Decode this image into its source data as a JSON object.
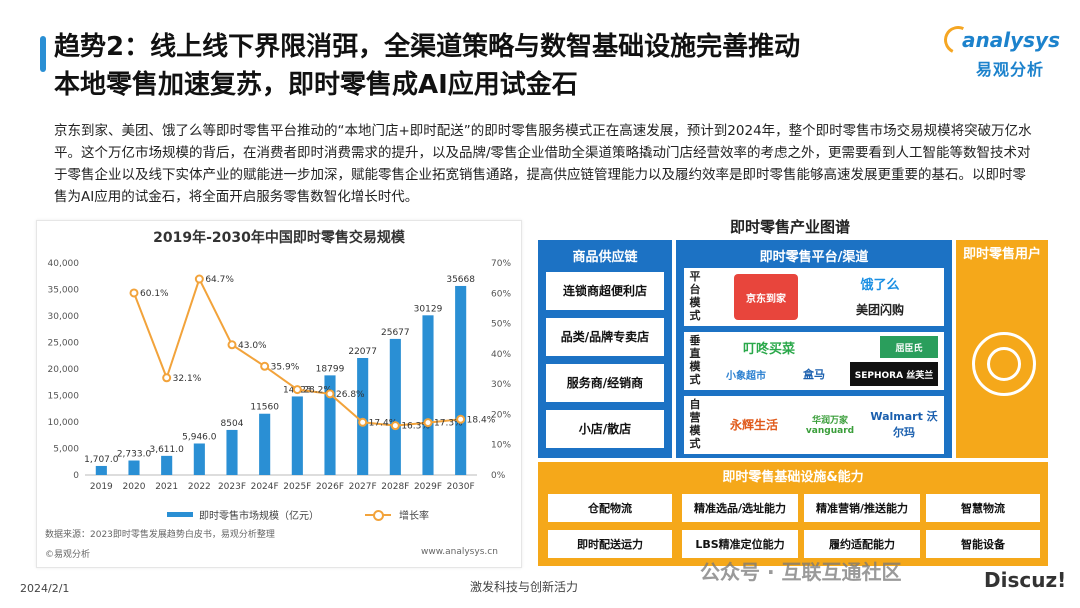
{
  "header": {
    "title_line1": "趋势2：线上线下界限消弭，全渠道策略与数智基础设施完善推动",
    "title_line2": "本地零售加速复苏，即时零售成AI应用试金石"
  },
  "logo": {
    "name": "analysys",
    "sub": "易观分析"
  },
  "body_text": "京东到家、美团、饿了么等即时零售平台推动的“本地门店+即时配送”的即时零售服务模式正在高速发展，预计到2024年，整个即时零售市场交易规模将突破万亿水平。这个万亿市场规模的背后，在消费者即时消费需求的提升，以及品牌/零售企业借助全渠道策略撬动门店经营效率的考虑之外，更需要看到人工智能等数智技术对于零售企业以及线下实体产业的赋能进一步加深，赋能零售企业拓宽销售通路，提高供应链管理能力以及履约效率是即时零售能够高速发展更重要的基石。以即时零售为AI应用的试金石，将全面开启服务零售数智化增长时代。",
  "chart_data": {
    "type": "bar",
    "title": "2019年-2030年中国即时零售交易规模",
    "categories": [
      "2019",
      "2020",
      "2021",
      "2022",
      "2023F",
      "2024F",
      "2025F",
      "2026F",
      "2027F",
      "2028F",
      "2029F",
      "2030F"
    ],
    "series": [
      {
        "name": "即时零售市场规模（亿元）",
        "type": "bar",
        "axis": "left",
        "values": [
          1707.0,
          2733.0,
          3611.0,
          5946.0,
          8504,
          11560,
          14823,
          18799,
          22077,
          25677,
          30129,
          35668
        ],
        "labels": [
          "1,707.0",
          "2,733.0",
          "3,611.0",
          "5,946.0",
          "8504",
          "11560",
          "14823",
          "18799",
          "22077",
          "25677",
          "30129",
          "35668"
        ]
      },
      {
        "name": "增长率",
        "type": "line",
        "axis": "right",
        "values": [
          null,
          60.1,
          32.1,
          64.7,
          43.0,
          35.9,
          28.2,
          26.8,
          17.4,
          16.3,
          17.3,
          18.4
        ],
        "labels": [
          "",
          "60.1%",
          "32.1%",
          "64.7%",
          "43.0%",
          "35.9%",
          "28.2%",
          "26.8%",
          "17.4%",
          "16.3%",
          "17.3%",
          "18.4%"
        ]
      }
    ],
    "left_axis": {
      "min": 0,
      "max": 40000,
      "ticks": [
        "0",
        "5,000",
        "10,000",
        "15,000",
        "20,000",
        "25,000",
        "30,000",
        "35,000",
        "40,000"
      ]
    },
    "right_axis": {
      "min": 0,
      "max": 70,
      "ticks": [
        "0%",
        "10%",
        "20%",
        "30%",
        "40%",
        "50%",
        "60%",
        "70%"
      ]
    },
    "bar_color": "#2a8fd4",
    "line_color": "#f2a33b",
    "legend_position": "bottom",
    "source": "数据来源：2023即时零售发展趋势白皮书，易观分析整理",
    "copyright": "©易观分析",
    "url": "www.analysys.cn"
  },
  "map": {
    "title": "即时零售产业图谱",
    "supply": {
      "head": "商品供应链",
      "items": [
        "连锁商超便利店",
        "品类/品牌专卖店",
        "服务商/经销商",
        "小店/散店"
      ]
    },
    "platform": {
      "head": "即时零售平台/渠道",
      "rows": [
        {
          "label": "平台模式",
          "brands": [
            "京东到家",
            "饿了么",
            "美团闪购"
          ]
        },
        {
          "label": "垂直模式",
          "brands": [
            "叮咚买菜",
            "屈臣氏",
            "小象超市",
            "盒马",
            "SEPHORA 丝芙兰"
          ]
        },
        {
          "label": "自营模式",
          "brands": [
            "永辉生活",
            "华润万家 vanguard",
            "Walmart 沃尔玛"
          ]
        }
      ]
    },
    "user": {
      "head": "即时零售用户"
    },
    "infra": {
      "head": "即时零售基础设施&能力",
      "left": [
        "仓配物流",
        "即时配送运力"
      ],
      "grid": [
        "精准选品/选址能力",
        "精准营销/推送能力",
        "智慧物流",
        "LBS精准定位能力",
        "履约适配能力",
        "智能设备"
      ]
    },
    "colors": {
      "blue": "#1c72c4",
      "orange": "#f5a81a"
    }
  },
  "footer": {
    "date": "2024/2/1",
    "center": "激发科技与创新活力",
    "watermark": "公众号 · 互联互通社区",
    "discuz": "Discuz!"
  }
}
